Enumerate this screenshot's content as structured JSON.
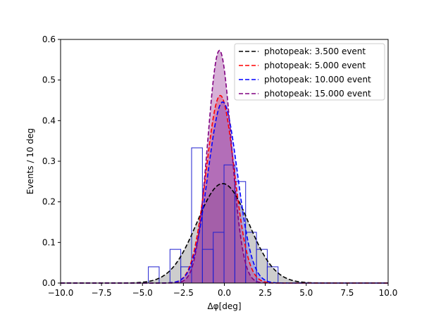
{
  "chart_data": {
    "type": "histogram_with_gaussian_fits",
    "xlabel": "Δφ[deg]",
    "ylabel": "Events / 10 deg",
    "xlim": [
      -10,
      10
    ],
    "ylim": [
      0,
      0.6
    ],
    "x_ticks": [
      "−10.0",
      "−7.5",
      "−5.0",
      "−2.5",
      "0.0",
      "2.5",
      "5.0",
      "7.5",
      "10.0"
    ],
    "y_ticks": [
      "0.0",
      "0.1",
      "0.2",
      "0.3",
      "0.4",
      "0.5",
      "0.6"
    ],
    "grid": false,
    "legend_position": "top-right",
    "histogram": {
      "bin_width": 0.66,
      "color": "#1f1fd0",
      "bins": [
        {
          "x0": -4.64,
          "height": 0.04
        },
        {
          "x0": -3.32,
          "height": 0.083
        },
        {
          "x0": -2.66,
          "height": 0.04
        },
        {
          "x0": -2.0,
          "height": 0.333
        },
        {
          "x0": -1.34,
          "height": 0.083
        },
        {
          "x0": -0.68,
          "height": 0.125
        },
        {
          "x0": -0.02,
          "height": 0.291
        },
        {
          "x0": 0.64,
          "height": 0.25
        },
        {
          "x0": 1.3,
          "height": 0.125
        },
        {
          "x0": 1.96,
          "height": 0.083
        },
        {
          "x0": 2.62,
          "height": 0.04
        }
      ]
    },
    "series": [
      {
        "name": "photopeak: 3.500 event",
        "color": "#000000",
        "fill": "#c8c8c8",
        "fill_opacity": 0.9,
        "mu": -0.1,
        "sigma": 1.58,
        "amplitude": 0.245
      },
      {
        "name": "photopeak: 5.000 event",
        "color": "#ff0000",
        "fill": "#ff4040",
        "fill_opacity": 0.35,
        "mu": -0.25,
        "sigma": 0.85,
        "amplitude": 0.462
      },
      {
        "name": "photopeak: 10.000 event",
        "color": "#0000ff",
        "fill": "#4a4aff",
        "fill_opacity": 0.3,
        "mu": -0.1,
        "sigma": 0.9,
        "amplitude": 0.446
      },
      {
        "name": "photopeak: 15.000 event",
        "color": "#800080",
        "fill": "#8b1f8b",
        "fill_opacity": 0.35,
        "mu": -0.3,
        "sigma": 0.72,
        "amplitude": 0.573
      }
    ]
  }
}
